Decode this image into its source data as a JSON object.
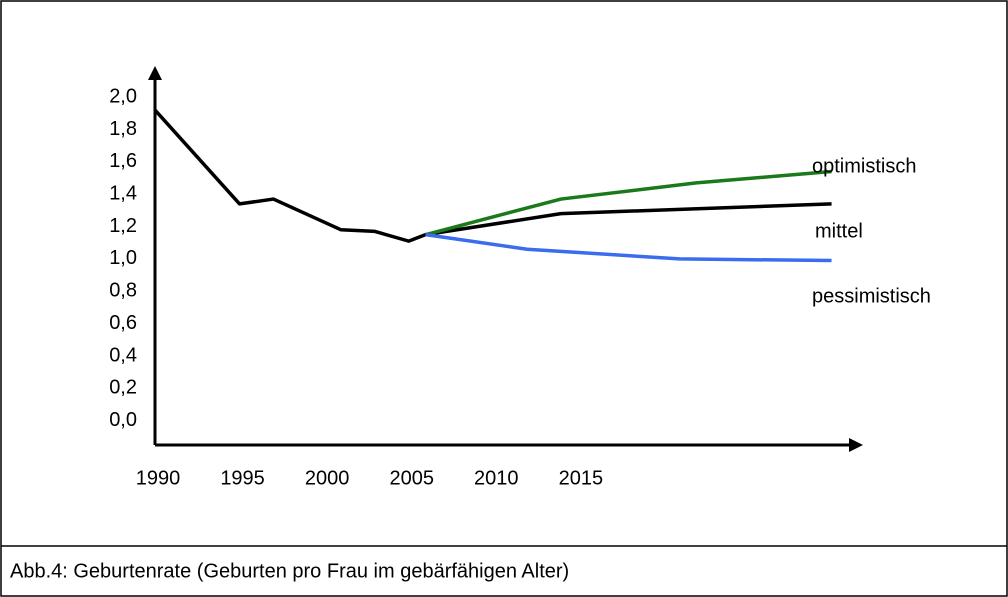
{
  "chart_data": {
    "type": "line",
    "caption": "Abb.4: Geburtenrate (Geburten pro Frau im gebärfähigen Alter)",
    "xlim": [
      1990,
      2031.8
    ],
    "ylim": [
      -0.15,
      2.18
    ],
    "xticks": [
      1990,
      1995,
      2000,
      2005,
      2010,
      2015
    ],
    "yticks": [
      {
        "value": 0.0,
        "label": "0,0"
      },
      {
        "value": 0.2,
        "label": "0,2"
      },
      {
        "value": 0.4,
        "label": "0,4"
      },
      {
        "value": 0.6,
        "label": "0,6"
      },
      {
        "value": 0.8,
        "label": "0,8"
      },
      {
        "value": 1.0,
        "label": "1,0"
      },
      {
        "value": 1.2,
        "label": "1,2"
      },
      {
        "value": 1.4,
        "label": "1,4"
      },
      {
        "value": 1.6,
        "label": "1,6"
      },
      {
        "value": 1.8,
        "label": "1,8"
      },
      {
        "value": 2.0,
        "label": "2,0"
      }
    ],
    "series": [
      {
        "name": "mittel",
        "color": "#000000",
        "x": [
          1990,
          1995,
          1997,
          2001,
          2003,
          2005,
          2006,
          2014,
          2030
        ],
        "values": [
          1.92,
          1.34,
          1.37,
          1.18,
          1.17,
          1.11,
          1.15,
          1.28,
          1.34
        ]
      },
      {
        "name": "optimistisch",
        "color": "#1a7a1a",
        "x": [
          2006,
          2014,
          2022,
          2030
        ],
        "values": [
          1.15,
          1.37,
          1.47,
          1.54
        ]
      },
      {
        "name": "pessimistisch",
        "color": "#3b6cf0",
        "x": [
          2006,
          2012,
          2021,
          2030
        ],
        "values": [
          1.15,
          1.06,
          1.0,
          0.99
        ]
      }
    ]
  }
}
